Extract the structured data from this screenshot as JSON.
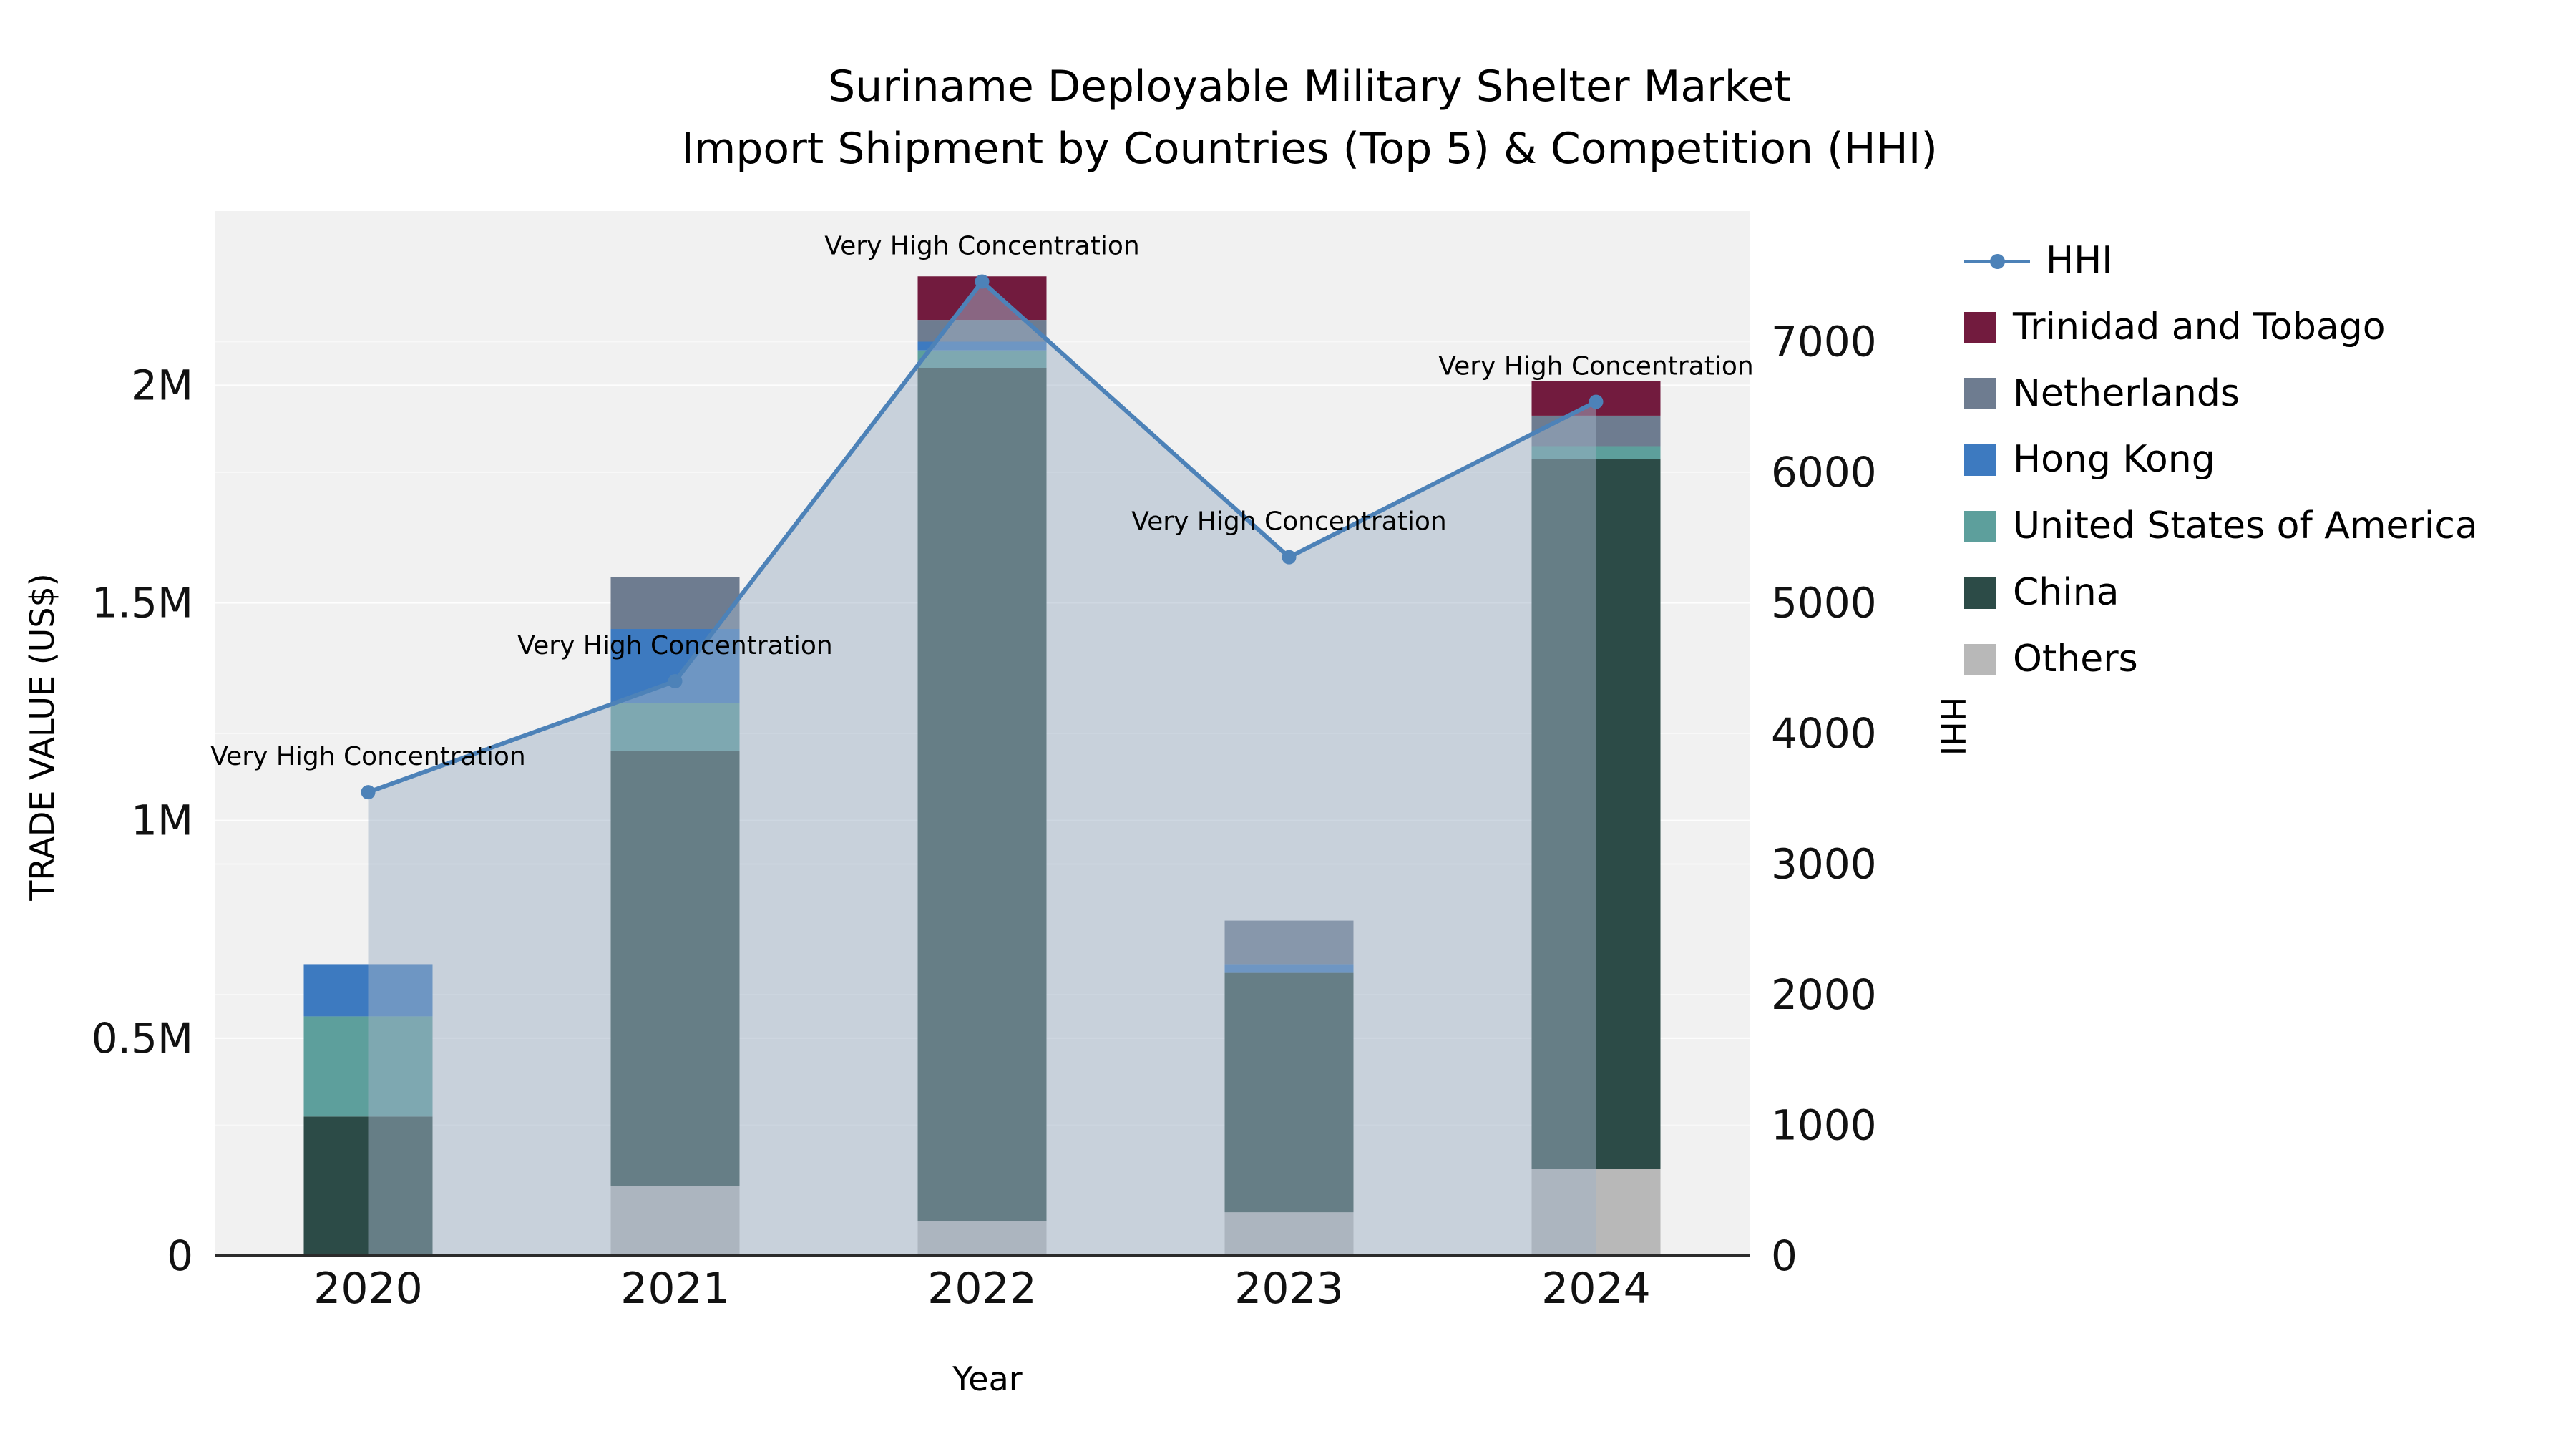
{
  "chart_data": {
    "type": "combo-stacked-bar-line",
    "title_line1": "Suriname Deployable Military Shelter Market",
    "title_line2": "Import Shipment by Countries (Top 5) & Competition (HHI)",
    "xlabel": "Year",
    "ylabel_left": "TRADE VALUE (US$)",
    "ylabel_right": "HHI",
    "categories": [
      "2020",
      "2021",
      "2022",
      "2023",
      "2024"
    ],
    "bar_series": [
      {
        "name": "Others",
        "color": "#b8b8b8",
        "values": [
          0,
          160000,
          80000,
          100000,
          200000
        ]
      },
      {
        "name": "China",
        "color": "#2c4b47",
        "values": [
          320000,
          1000000,
          1960000,
          550000,
          1630000
        ]
      },
      {
        "name": "United States of America",
        "color": "#5d9f9c",
        "values": [
          230000,
          110000,
          40000,
          0,
          30000
        ]
      },
      {
        "name": "Hong Kong",
        "color": "#3d7ac0",
        "values": [
          120000,
          170000,
          20000,
          20000,
          0
        ]
      },
      {
        "name": "Netherlands",
        "color": "#6e7c90",
        "values": [
          0,
          120000,
          50000,
          100000,
          70000
        ]
      },
      {
        "name": "Trinidad and Tobago",
        "color": "#721b3e",
        "values": [
          0,
          0,
          100000,
          0,
          80000
        ]
      }
    ],
    "line_series": {
      "name": "HHI",
      "color": "#4d82b8",
      "area_fill": "rgba(160,178,198,0.5)",
      "values": [
        3550,
        4400,
        7460,
        5350,
        6540
      ]
    },
    "annotations": [
      "Very High Concentration",
      "Very High Concentration",
      "Very High Concentration",
      "Very High Concentration",
      "Very High Concentration"
    ],
    "left_axis": {
      "max": 2400000,
      "ticks": [
        {
          "label": "0",
          "value": 0
        },
        {
          "label": "0.5M",
          "value": 500000
        },
        {
          "label": "1M",
          "value": 1000000
        },
        {
          "label": "1.5M",
          "value": 1500000
        },
        {
          "label": "2M",
          "value": 2000000
        }
      ]
    },
    "right_axis": {
      "max": 8000,
      "tick_values": [
        0,
        1000,
        2000,
        3000,
        4000,
        5000,
        6000,
        7000
      ]
    },
    "legend_order": [
      "HHI",
      "Trinidad and Tobago",
      "Netherlands",
      "Hong Kong",
      "United States of America",
      "China",
      "Others"
    ],
    "plot_background": "#f1f1f1",
    "grid": true,
    "legend_position": "right"
  }
}
